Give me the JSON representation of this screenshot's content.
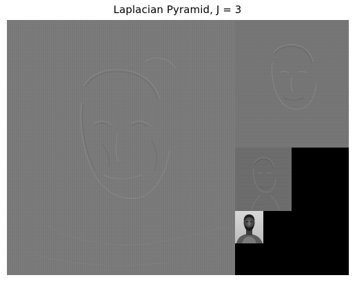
{
  "title": "Laplacian Pyramid, J = 3",
  "pyramid": {
    "levels": [
      {
        "name": "laplacian-level-0",
        "kind": "detail",
        "tone": "#7b7b7b"
      },
      {
        "name": "laplacian-level-1",
        "kind": "detail",
        "tone": "#757575"
      },
      {
        "name": "laplacian-level-2",
        "kind": "detail",
        "tone": "#6b6b6b"
      },
      {
        "name": "gaussian-residual",
        "kind": "lowpass-image"
      }
    ],
    "background": "#000000"
  }
}
